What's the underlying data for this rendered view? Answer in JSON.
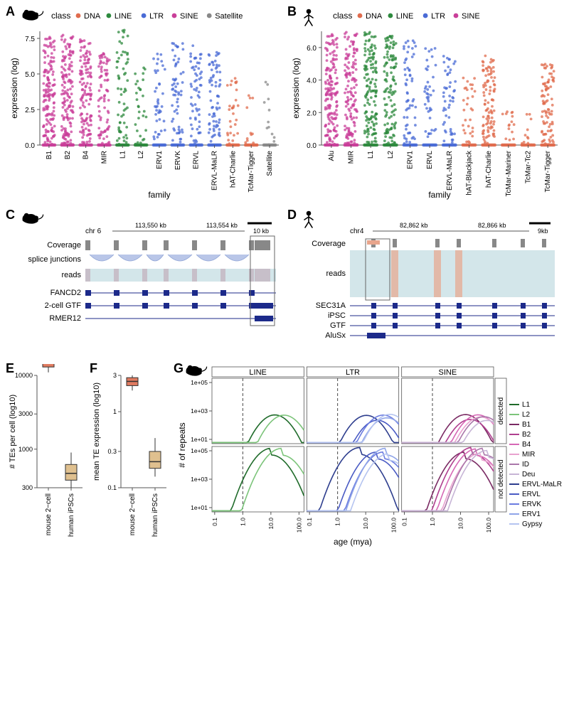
{
  "panels": {
    "A": {
      "label": "A",
      "legend_title": "class",
      "ylab": "expression (log)",
      "xlab": "family",
      "ylim": [
        0,
        8
      ],
      "ytick_step": 2.5,
      "classes": [
        {
          "name": "DNA",
          "color": "#e06c4e"
        },
        {
          "name": "LINE",
          "color": "#2d8a3e"
        },
        {
          "name": "LTR",
          "color": "#4a6bd6"
        },
        {
          "name": "SINE",
          "color": "#c93f99"
        },
        {
          "name": "Satellite",
          "color": "#888888"
        }
      ],
      "families": [
        {
          "name": "B1",
          "class": "SINE",
          "n": 150,
          "ymax": 7.8
        },
        {
          "name": "B2",
          "class": "SINE",
          "n": 150,
          "ymax": 7.8
        },
        {
          "name": "B4",
          "class": "SINE",
          "n": 130,
          "ymax": 7.5
        },
        {
          "name": "MIR",
          "class": "SINE",
          "n": 80,
          "ymax": 6.5
        },
        {
          "name": "L1",
          "class": "LINE",
          "n": 60,
          "ymax": 8.2
        },
        {
          "name": "L2",
          "class": "LINE",
          "n": 30,
          "ymax": 5.5
        },
        {
          "name": "ERV1",
          "class": "LTR",
          "n": 40,
          "ymax": 6.5
        },
        {
          "name": "ERVK",
          "class": "LTR",
          "n": 60,
          "ymax": 7.2
        },
        {
          "name": "ERVL",
          "class": "LTR",
          "n": 60,
          "ymax": 7.0
        },
        {
          "name": "ERVL-MaLR",
          "class": "LTR",
          "n": 70,
          "ymax": 6.8
        },
        {
          "name": "hAT-Charlie",
          "class": "DNA",
          "n": 30,
          "ymax": 5.5
        },
        {
          "name": "TcMar-Tigger",
          "class": "DNA",
          "n": 12,
          "ymax": 3.5
        },
        {
          "name": "Satellite",
          "class": "Satellite",
          "n": 12,
          "ymax": 4.5
        }
      ]
    },
    "B": {
      "label": "B",
      "legend_title": "class",
      "ylab": "expression (log)",
      "xlab": "family",
      "ylim": [
        0,
        7
      ],
      "ytick_step": 2,
      "classes": [
        {
          "name": "DNA",
          "color": "#e06c4e"
        },
        {
          "name": "LINE",
          "color": "#2d8a3e"
        },
        {
          "name": "LTR",
          "color": "#4a6bd6"
        },
        {
          "name": "SINE",
          "color": "#c93f99"
        }
      ],
      "families": [
        {
          "name": "Alu",
          "class": "SINE",
          "n": 160,
          "ymax": 7.0
        },
        {
          "name": "MIR",
          "class": "SINE",
          "n": 140,
          "ymax": 7.0
        },
        {
          "name": "L1",
          "class": "LINE",
          "n": 140,
          "ymax": 7.0
        },
        {
          "name": "L2",
          "class": "LINE",
          "n": 120,
          "ymax": 6.8
        },
        {
          "name": "ERV1",
          "class": "LTR",
          "n": 60,
          "ymax": 6.5
        },
        {
          "name": "ERVL",
          "class": "LTR",
          "n": 40,
          "ymax": 6.0
        },
        {
          "name": "ERVL-MaLR",
          "class": "LTR",
          "n": 50,
          "ymax": 5.5
        },
        {
          "name": "hAT-Blackjack",
          "class": "DNA",
          "n": 30,
          "ymax": 4.5
        },
        {
          "name": "hAT-Charlie",
          "class": "DNA",
          "n": 100,
          "ymax": 5.5
        },
        {
          "name": "TcMar-Mariner",
          "class": "DNA",
          "n": 15,
          "ymax": 2.5
        },
        {
          "name": "TcMar-Tc2",
          "class": "DNA",
          "n": 12,
          "ymax": 2.0
        },
        {
          "name": "TcMar-Tigger",
          "class": "DNA",
          "n": 90,
          "ymax": 5.0
        }
      ]
    },
    "C": {
      "label": "C",
      "chrom": "chr 6",
      "ticks": [
        "113,550 kb",
        "113,554 kb"
      ],
      "scale": "10 kb",
      "tracks": [
        "Coverage",
        "splice junctions",
        "reads",
        "FANCD2",
        "2-cell GTF",
        "RMER12"
      ],
      "colors": {
        "coverage": "#888888",
        "junction": "#8fa4d6",
        "junction_fill": "#b9c6e8",
        "gene": "#1c2a8a",
        "reads_bg": "#d3e6ea",
        "reads_alt": "#bfa5b3"
      }
    },
    "D": {
      "label": "D",
      "chrom": "chr4",
      "ticks": [
        "82,862 kb",
        "82,866 kb"
      ],
      "scale": "9kb",
      "tracks": [
        "Coverage",
        "reads",
        "SEC31A",
        "iPSC",
        "GTF",
        "AluSx"
      ],
      "colors": {
        "coverage": "#888888",
        "reads_bg": "#d3e6ea",
        "reads_alt": "#e8a58c",
        "gene": "#1c2a8a"
      }
    },
    "E": {
      "label": "E",
      "ylab": "# TEs per cell (log10)",
      "categories": [
        "mouse 2−cell",
        "human iPSCs"
      ],
      "yticks": [
        300,
        1000,
        3000,
        10000
      ],
      "boxes": [
        {
          "q1": 13000,
          "med": 15000,
          "q3": 17000,
          "whlo": 11000,
          "whhi": 19000,
          "fill": "#e07b60"
        },
        {
          "q1": 380,
          "med": 470,
          "q3": 620,
          "whlo": 300,
          "whhi": 900,
          "fill": "#dfc08f"
        }
      ],
      "box_line": "#333333"
    },
    "F": {
      "label": "F",
      "ylab": "mean TE expression (log10)",
      "categories": [
        "mouse 2−cell",
        "human iPSCs"
      ],
      "yticks": [
        0.1,
        0.3,
        1.0,
        3.0
      ],
      "boxes": [
        {
          "q1": 2.2,
          "med": 2.5,
          "q3": 2.8,
          "whlo": 1.9,
          "whhi": 3.0,
          "fill": "#e07b60"
        },
        {
          "q1": 0.18,
          "med": 0.22,
          "q3": 0.3,
          "whlo": 0.14,
          "whhi": 0.45,
          "fill": "#dfc08f"
        }
      ],
      "box_line": "#333333"
    },
    "G": {
      "label": "G",
      "xlab": "age (mya)",
      "ylab": "# of repeats",
      "facet_cols": [
        "LINE",
        "LTR",
        "SINE"
      ],
      "facet_rows": [
        "detected",
        "not detected"
      ],
      "xticks": [
        "0.1",
        "1.0",
        "10.0",
        "100.0"
      ],
      "yticks_top": [
        "1e+01",
        "1e+03",
        "1e+05"
      ],
      "yticks_bot": [
        "1e+01",
        "1e+03",
        "1e+05"
      ],
      "dashed_x": "1.0",
      "families": [
        {
          "name": "L1",
          "color": "#1f6b2a"
        },
        {
          "name": "L2",
          "color": "#7cc47a"
        },
        {
          "name": "B1",
          "color": "#7a2a63"
        },
        {
          "name": "B2",
          "color": "#b03f8f"
        },
        {
          "name": "B4",
          "color": "#d668b5"
        },
        {
          "name": "MIR",
          "color": "#e9a2cf"
        },
        {
          "name": "ID",
          "color": "#aa77aa"
        },
        {
          "name": "Deu",
          "color": "#c7b5d6"
        },
        {
          "name": "ERVL-MaLR",
          "color": "#2e3e8e"
        },
        {
          "name": "ERVL",
          "color": "#4a5bc4"
        },
        {
          "name": "ERVK",
          "color": "#6b7ce0"
        },
        {
          "name": "ERV1",
          "color": "#8fa4e8"
        },
        {
          "name": "Gypsy",
          "color": "#b5c4f0"
        }
      ],
      "bg": "#ffffff",
      "grid": "#dddddd"
    }
  }
}
